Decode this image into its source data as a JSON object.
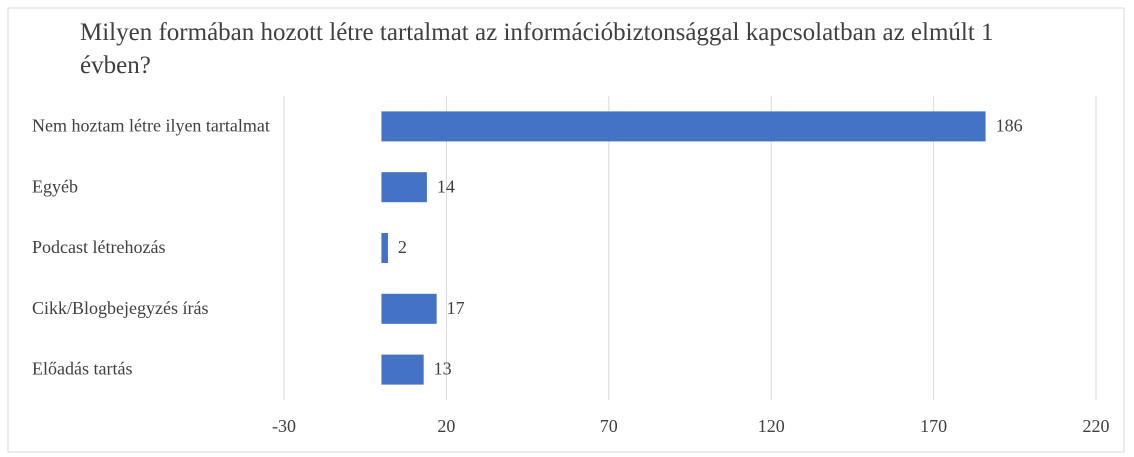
{
  "chart_data": {
    "type": "bar",
    "orientation": "horizontal",
    "title": "Milyen formában hozott létre tartalmat az információbiztonsággal kapcsolatban az elmúlt 1 évben?",
    "categories": [
      "Nem hoztam létre ilyen tartalmat",
      "Egyéb",
      "Podcast létrehozás",
      "Cikk/Blogbejegyzés írás",
      "Előadás tartás"
    ],
    "values": [
      186,
      14,
      2,
      17,
      13
    ],
    "color": "#4472c4",
    "xlim": [
      -30,
      220
    ],
    "xticks": [
      -30,
      20,
      70,
      120,
      170,
      220
    ],
    "grid": true
  }
}
